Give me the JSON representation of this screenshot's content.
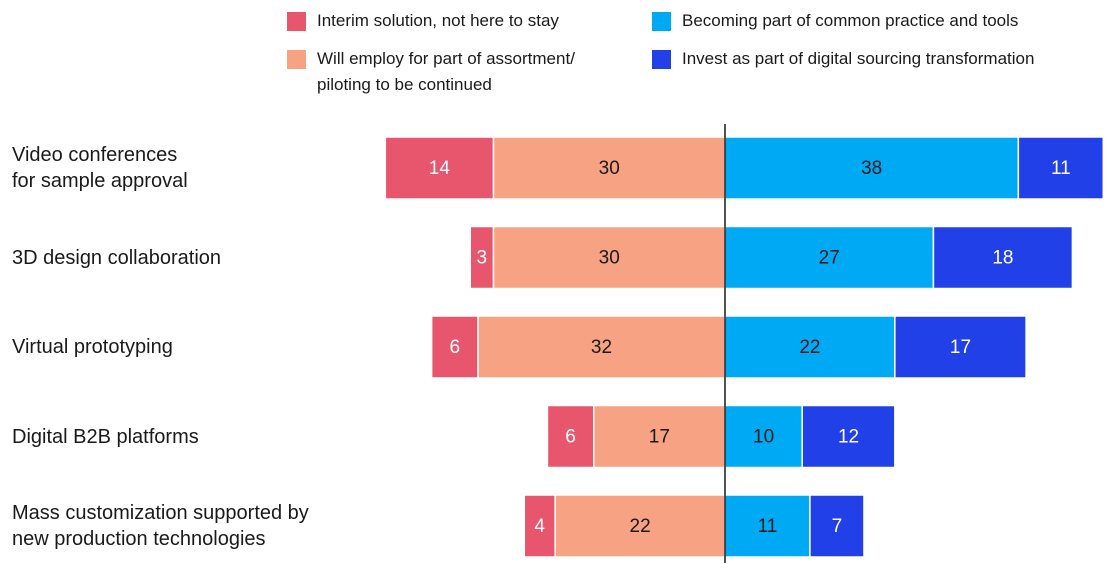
{
  "chart_data": {
    "type": "diverging-bar",
    "categories": [
      "Video conferences\nfor sample approval",
      "3D design collaboration",
      "Virtual prototyping",
      "Digital B2B platforms",
      "Mass customization supported by\nnew production technologies"
    ],
    "series": [
      {
        "name": "Interim solution, not here to stay",
        "color": "#e8566e",
        "label_color": "#ffffff",
        "side": "left",
        "values": [
          14,
          3,
          6,
          6,
          4
        ]
      },
      {
        "name": "Will employ for part of assortment/\npiloting to be continued",
        "color": "#f7a283",
        "label_color": "#1a1a1a",
        "side": "left",
        "values": [
          30,
          30,
          32,
          17,
          22
        ]
      },
      {
        "name": "Becoming part of common practice and tools",
        "color": "#00a9f4",
        "label_color": "#1a1a1a",
        "side": "right",
        "values": [
          38,
          27,
          22,
          10,
          11
        ]
      },
      {
        "name": "Invest as part of digital sourcing transformation",
        "color": "#2140e8",
        "label_color": "#ffffff",
        "side": "right",
        "values": [
          11,
          18,
          17,
          12,
          7
        ]
      }
    ]
  }
}
